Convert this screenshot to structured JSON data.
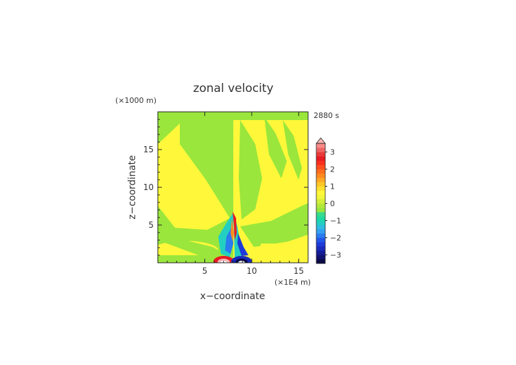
{
  "chart_data": {
    "type": "heatmap",
    "title": "zonal velocity",
    "xlabel": "x−coordinate",
    "ylabel": "z−coordinate",
    "x_unit": "(×1E4 m)",
    "y_unit": "(×1000 m)",
    "time_label": "2880 s",
    "xlim": [
      0,
      16
    ],
    "ylim": [
      0,
      20
    ],
    "x_ticks": [
      "5",
      "10",
      "15"
    ],
    "y_ticks": [
      "5",
      "10",
      "15"
    ],
    "colorbar": {
      "range": [
        -3.5,
        3.5
      ],
      "step": 0.25,
      "extend": "max",
      "tick_labels": [
        "3",
        "2",
        "1",
        "0",
        "−1",
        "−2",
        "−3"
      ],
      "tick_values": [
        3,
        2,
        1,
        0,
        -1,
        -2,
        -3
      ],
      "colors": [
        "#0a0a46",
        "#10126e",
        "#141c96",
        "#1a2aba",
        "#1e3ad8",
        "#2256ea",
        "#2a7af0",
        "#34a0f2",
        "#30bce0",
        "#22cfc0",
        "#1ed8a0",
        "#38dc8c",
        "#9ae63c",
        "#b2e83c",
        "#d2ef3a",
        "#f2f53a",
        "#fff83a",
        "#ffe130",
        "#ffc628",
        "#ffa824",
        "#ff8a20",
        "#ff6c1e",
        "#ff4e1e",
        "#f83020",
        "#e81a22",
        "#e83a3a",
        "#f06464",
        "#f88a8a"
      ],
      "over_color": "#f8b4b4"
    }
  }
}
